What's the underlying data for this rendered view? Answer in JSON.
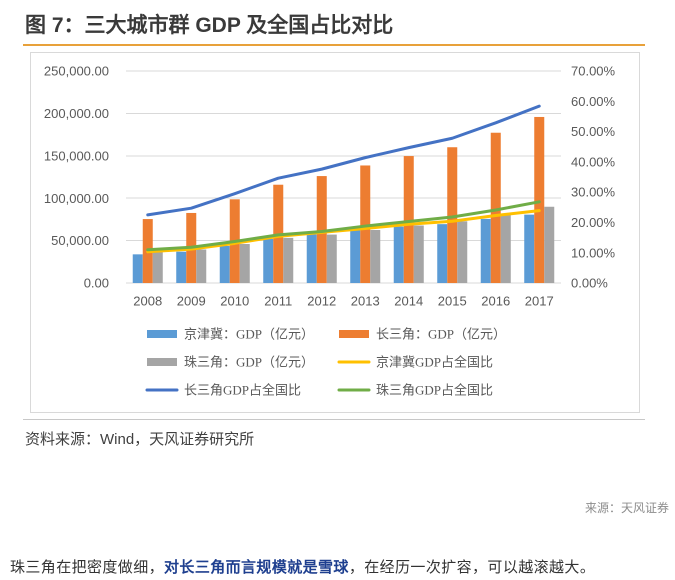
{
  "figure": {
    "title": "图 7：三大城市群 GDP 及全国占比对比",
    "source": "资料来源：Wind，天风证券研究所",
    "rule_color": "#E8A13A"
  },
  "chart_data": {
    "type": "bar+line",
    "categories": [
      "2008",
      "2009",
      "2010",
      "2011",
      "2012",
      "2013",
      "2014",
      "2015",
      "2016",
      "2017"
    ],
    "y_left": {
      "lim": [
        0,
        250000
      ],
      "tick_labels": [
        "0.00",
        "50,000.00",
        "100,000.00",
        "150,000.00",
        "200,000.00",
        "250,000.00"
      ]
    },
    "y_right": {
      "lim": [
        0,
        70
      ],
      "tick_labels": [
        "0.00%",
        "10.00%",
        "20.00%",
        "30.00%",
        "40.00%",
        "50.00%",
        "60.00%",
        "70.00%"
      ]
    },
    "grid": true,
    "legend": "bottom",
    "bar_series": [
      {
        "name": "京津冀：GDP（亿元）",
        "color": "#5B9BD5",
        "values": [
          33800,
          36900,
          43700,
          52100,
          57300,
          62500,
          66500,
          69400,
          75600,
          80600
        ]
      },
      {
        "name": "长三角：GDP（亿元）",
        "color": "#ED7D31",
        "values": [
          75400,
          82600,
          98700,
          115900,
          126100,
          138600,
          149700,
          160100,
          177200,
          195800
        ]
      },
      {
        "name": "珠三角：GDP（亿元）",
        "color": "#A5A5A5",
        "values": [
          36800,
          39500,
          46000,
          53200,
          57100,
          62500,
          67800,
          72800,
          80900,
          89900
        ]
      }
    ],
    "line_series": [
      {
        "name": "京津冀GDP占全国比",
        "color": "#FFC000",
        "values": [
          10.3,
          11.2,
          13.1,
          15.4,
          16.7,
          18.0,
          19.4,
          20.4,
          22.3,
          23.9
        ]
      },
      {
        "name": "长三角GDP占全国比",
        "color": "#4472C4",
        "values": [
          22.5,
          24.7,
          29.5,
          34.6,
          37.6,
          41.4,
          44.7,
          47.8,
          52.9,
          58.4
        ]
      },
      {
        "name": "珠三角GDP占全国比",
        "color": "#70AD47",
        "values": [
          11.0,
          11.8,
          13.7,
          15.9,
          17.0,
          18.8,
          20.3,
          21.8,
          24.1,
          26.8
        ]
      }
    ]
  },
  "credit": "来源：天风证券",
  "body": {
    "lead": "珠三角在把密度做细，",
    "emphasis": "对长三角而言规模就是雪球",
    "tail": "，在经历一次扩容，可以越滚越大。",
    "emphasis_color": "#1E3F8F"
  }
}
